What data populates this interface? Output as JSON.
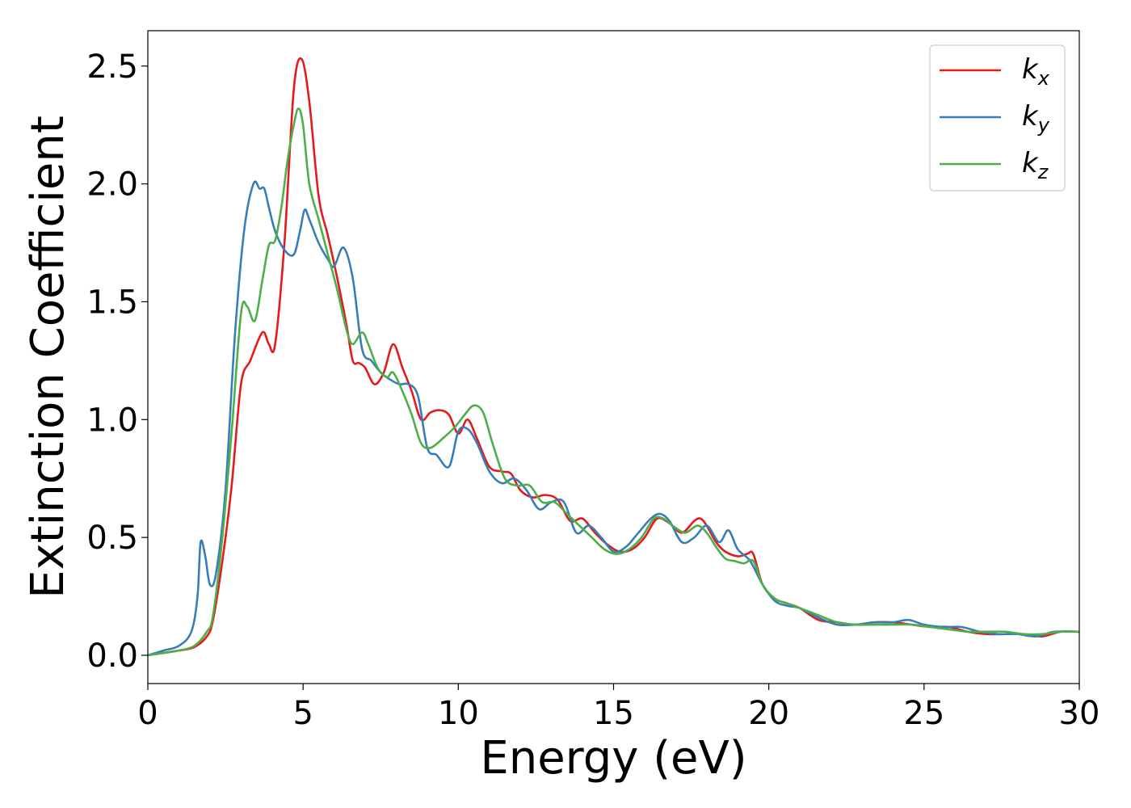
{
  "chart_data": {
    "type": "line",
    "xlabel": "Energy (eV)",
    "ylabel": "Extinction Coefficient",
    "xlim": [
      0,
      30
    ],
    "ylim": [
      -0.12,
      2.65
    ],
    "xticks": [
      "0",
      "5",
      "10",
      "15",
      "20",
      "25",
      "30"
    ],
    "yticks": [
      "0.0",
      "0.5",
      "1.0",
      "1.5",
      "2.0",
      "2.5"
    ],
    "legend_position": "top-right",
    "grid": false,
    "series": [
      {
        "name": "kx",
        "label_main": "k",
        "label_sub": "x",
        "color": "#e41a1c",
        "x": [
          0,
          0.5,
          1,
          1.5,
          1.9,
          2.1,
          2.4,
          2.7,
          3,
          3.3,
          3.6,
          3.75,
          3.9,
          4.1,
          4.4,
          4.7,
          4.95,
          5.2,
          5.5,
          5.8,
          6.1,
          6.4,
          6.6,
          6.8,
          7,
          7.3,
          7.6,
          7.9,
          8.2,
          8.5,
          8.8,
          9.1,
          9.4,
          9.7,
          10,
          10.3,
          10.6,
          11,
          11.4,
          11.7,
          12,
          12.4,
          12.8,
          13.2,
          13.6,
          14,
          14.4,
          14.8,
          15.2,
          15.6,
          16,
          16.4,
          16.8,
          17.2,
          17.6,
          17.8,
          18,
          18.3,
          18.6,
          19,
          19.3,
          19.5,
          19.8,
          20.2,
          20.6,
          21,
          21.6,
          22.2,
          22.8,
          23.4,
          24,
          24.6,
          25.2,
          25.8,
          26.4,
          27,
          27.6,
          28.2,
          28.8,
          29.4,
          30
        ],
        "y": [
          0,
          0.01,
          0.02,
          0.035,
          0.08,
          0.15,
          0.4,
          0.72,
          1.15,
          1.25,
          1.35,
          1.37,
          1.32,
          1.32,
          1.75,
          2.4,
          2.53,
          2.35,
          1.95,
          1.78,
          1.6,
          1.4,
          1.25,
          1.24,
          1.22,
          1.15,
          1.2,
          1.32,
          1.22,
          1.12,
          1,
          1.03,
          1.04,
          1.02,
          0.94,
          1,
          0.92,
          0.8,
          0.78,
          0.77,
          0.7,
          0.67,
          0.68,
          0.66,
          0.57,
          0.58,
          0.52,
          0.47,
          0.44,
          0.45,
          0.5,
          0.58,
          0.56,
          0.52,
          0.57,
          0.58,
          0.55,
          0.48,
          0.44,
          0.42,
          0.43,
          0.43,
          0.3,
          0.24,
          0.22,
          0.2,
          0.15,
          0.14,
          0.13,
          0.14,
          0.14,
          0.13,
          0.12,
          0.12,
          0.1,
          0.09,
          0.09,
          0.09,
          0.08,
          0.1,
          0.1
        ]
      },
      {
        "name": "ky",
        "label_main": "k",
        "label_sub": "y",
        "color": "#377eb8",
        "x": [
          0,
          0.5,
          1,
          1.4,
          1.6,
          1.7,
          1.85,
          2,
          2.2,
          2.5,
          2.8,
          3.1,
          3.4,
          3.6,
          3.75,
          3.9,
          4.1,
          4.4,
          4.7,
          4.9,
          5.05,
          5.2,
          5.5,
          5.8,
          6,
          6.3,
          6.6,
          6.9,
          7.2,
          7.5,
          7.8,
          8.1,
          8.4,
          8.7,
          9,
          9.3,
          9.7,
          10,
          10.3,
          10.6,
          11,
          11.4,
          11.8,
          12.2,
          12.6,
          13,
          13.4,
          13.8,
          14.2,
          14.6,
          15,
          15.4,
          15.8,
          16.2,
          16.5,
          16.8,
          17.2,
          17.6,
          18,
          18.4,
          18.7,
          19,
          19.4,
          19.8,
          20.2,
          20.6,
          21,
          21.6,
          22.2,
          22.8,
          23.4,
          24,
          24.5,
          25,
          25.6,
          26.2,
          26.8,
          27.4,
          28,
          28.6,
          29.2,
          30
        ],
        "y": [
          0,
          0.02,
          0.04,
          0.1,
          0.25,
          0.48,
          0.42,
          0.3,
          0.35,
          0.7,
          1.35,
          1.8,
          2,
          1.98,
          1.98,
          1.9,
          1.8,
          1.72,
          1.7,
          1.8,
          1.89,
          1.85,
          1.75,
          1.68,
          1.65,
          1.73,
          1.6,
          1.3,
          1.25,
          1.2,
          1.17,
          1.15,
          1.15,
          1.1,
          0.88,
          0.85,
          0.8,
          0.95,
          0.96,
          0.9,
          0.78,
          0.73,
          0.75,
          0.7,
          0.62,
          0.65,
          0.65,
          0.52,
          0.55,
          0.5,
          0.44,
          0.46,
          0.52,
          0.58,
          0.6,
          0.57,
          0.48,
          0.5,
          0.55,
          0.48,
          0.53,
          0.45,
          0.4,
          0.3,
          0.23,
          0.21,
          0.2,
          0.16,
          0.13,
          0.13,
          0.14,
          0.14,
          0.15,
          0.13,
          0.12,
          0.12,
          0.1,
          0.09,
          0.09,
          0.08,
          0.1,
          0.1
        ]
      },
      {
        "name": "kz",
        "label_main": "k",
        "label_sub": "z",
        "color": "#4daf4a",
        "x": [
          0,
          0.5,
          1,
          1.5,
          1.9,
          2.1,
          2.4,
          2.7,
          3,
          3.2,
          3.45,
          3.7,
          3.9,
          4.1,
          4.3,
          4.5,
          4.7,
          4.85,
          5,
          5.2,
          5.5,
          5.8,
          6.1,
          6.4,
          6.6,
          6.9,
          7.1,
          7.4,
          7.7,
          7.9,
          8.2,
          8.5,
          8.8,
          9.1,
          9.5,
          9.9,
          10.2,
          10.5,
          10.8,
          11.1,
          11.5,
          11.9,
          12.3,
          12.7,
          13.1,
          13.5,
          13.9,
          14.3,
          14.7,
          15.1,
          15.5,
          15.9,
          16.3,
          16.6,
          16.9,
          17.3,
          17.7,
          18,
          18.3,
          18.6,
          18.9,
          19.2,
          19.5,
          19.8,
          20.2,
          20.6,
          21,
          21.6,
          22.2,
          22.8,
          23.4,
          24,
          24.6,
          25.2,
          25.8,
          26.4,
          27,
          27.6,
          28.2,
          28.8,
          29.4,
          30
        ],
        "y": [
          0,
          0.01,
          0.02,
          0.04,
          0.1,
          0.17,
          0.5,
          0.95,
          1.45,
          1.48,
          1.42,
          1.6,
          1.74,
          1.76,
          1.9,
          2.1,
          2.25,
          2.32,
          2.25,
          2,
          1.85,
          1.7,
          1.55,
          1.38,
          1.32,
          1.37,
          1.32,
          1.22,
          1.18,
          1.2,
          1.12,
          1.02,
          0.9,
          0.88,
          0.92,
          0.97,
          1.02,
          1.06,
          1.03,
          0.9,
          0.75,
          0.72,
          0.72,
          0.65,
          0.65,
          0.6,
          0.55,
          0.5,
          0.45,
          0.43,
          0.45,
          0.5,
          0.58,
          0.58,
          0.55,
          0.52,
          0.55,
          0.52,
          0.46,
          0.41,
          0.4,
          0.39,
          0.4,
          0.3,
          0.24,
          0.22,
          0.2,
          0.17,
          0.14,
          0.13,
          0.13,
          0.13,
          0.13,
          0.12,
          0.11,
          0.1,
          0.1,
          0.1,
          0.09,
          0.09,
          0.1,
          0.1
        ]
      }
    ]
  }
}
